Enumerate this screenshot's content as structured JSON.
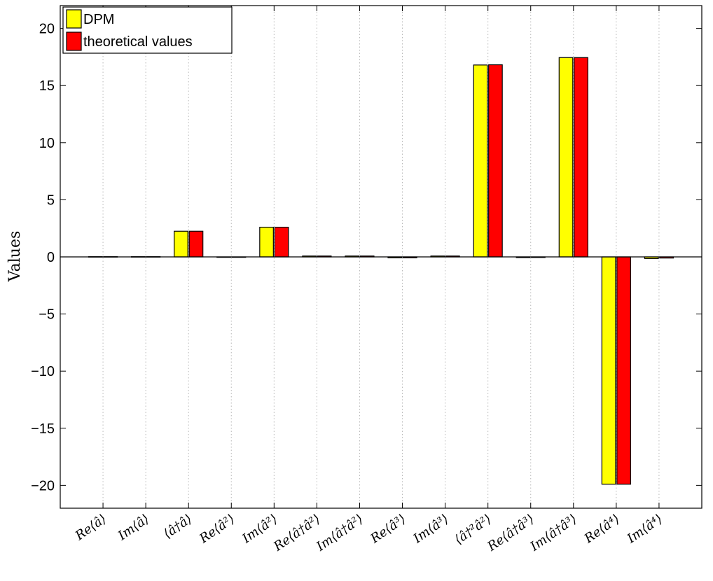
{
  "chart_data": {
    "type": "bar",
    "ylabel": "Values",
    "ylim": [
      -22,
      22
    ],
    "yticks": [
      20,
      15,
      10,
      5,
      0,
      -5,
      -10,
      -15,
      -20
    ],
    "ytick_labels": [
      "20",
      "15",
      "10",
      "5",
      "0",
      "−5",
      "−10",
      "−15",
      "−20"
    ],
    "grid": "vertical-dotted",
    "legend_position": "top-left",
    "categories": [
      "Re⟨â⟩",
      "Im⟨â⟩",
      "⟨â†â⟩",
      "Re⟨â²⟩",
      "Im⟨â²⟩",
      "Re⟨â†â²⟩",
      "Im⟨â†â²⟩",
      "Re⟨â³⟩",
      "Im⟨â³⟩",
      "⟨â†²â²⟩",
      "Re⟨â†â³⟩",
      "Im⟨â†â³⟩",
      "Re⟨â⁴⟩",
      "Im⟨â⁴⟩"
    ],
    "series": [
      {
        "name": "DPM",
        "color": "#ffff00",
        "values": [
          0.02,
          0.02,
          2.25,
          -0.03,
          2.6,
          0.08,
          0.08,
          -0.08,
          0.08,
          16.8,
          -0.06,
          17.45,
          -19.9,
          -0.15
        ]
      },
      {
        "name": "theoretical values",
        "color": "#ff0000",
        "values": [
          0.02,
          0.02,
          2.25,
          -0.03,
          2.6,
          0.08,
          0.08,
          -0.08,
          0.08,
          16.82,
          -0.05,
          17.45,
          -19.9,
          -0.1
        ]
      }
    ]
  }
}
